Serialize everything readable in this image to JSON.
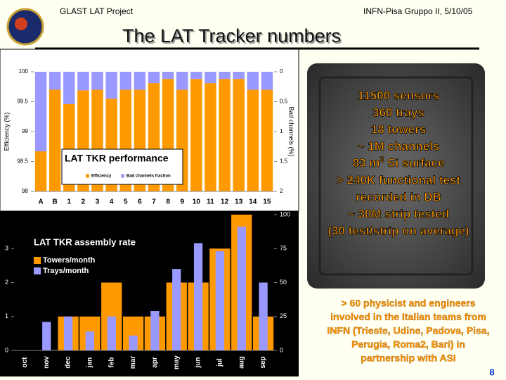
{
  "header": {
    "left": "GLAST LAT Project",
    "right": "INFN-Pisa Gruppo II, 5/10/05"
  },
  "title": "The LAT Tracker numbers",
  "chart_data": [
    {
      "type": "bar",
      "title": "LAT TKR performance",
      "categories": [
        "A",
        "B",
        "1",
        "2",
        "3",
        "4",
        "5",
        "6",
        "7",
        "8",
        "9",
        "10",
        "11",
        "12",
        "13",
        "14",
        "15"
      ],
      "series": [
        {
          "name": "Efficiency",
          "color": "#ff9900",
          "values": [
            98.67,
            99.7,
            99.46,
            99.69,
            99.7,
            99.55,
            99.7,
            99.7,
            99.81,
            99.88,
            99.7,
            99.88,
            99.81,
            99.88,
            99.88,
            99.7,
            99.7
          ]
        },
        {
          "name": "Bad channels fraction",
          "color": "#9999ff",
          "axis": "y2",
          "values": [
            1.33,
            0.3,
            0.54,
            0.31,
            0.3,
            0.45,
            0.3,
            0.3,
            0.19,
            0.12,
            0.3,
            0.12,
            0.19,
            0.12,
            0.12,
            0.3,
            0.3
          ]
        }
      ],
      "ylabel": "Efficiency (%)",
      "y2label": "Bad channels (%)",
      "ylim": [
        98,
        100
      ],
      "yticks": [
        98,
        98.5,
        99,
        99.5,
        100
      ],
      "y2lim": [
        2,
        0
      ],
      "y2ticks": [
        0,
        0.5,
        1,
        1.5,
        2
      ]
    },
    {
      "type": "bar",
      "title": "LAT TKR assembly rate",
      "categories": [
        "oct",
        "nov",
        "dec",
        "jan",
        "feb",
        "mar",
        "apr",
        "may",
        "jun",
        "jul",
        "aug",
        "sep"
      ],
      "series": [
        {
          "name": "Towers/month",
          "color": "#ff9900",
          "values": [
            0,
            0,
            1,
            1,
            2,
            1,
            1,
            2,
            2,
            3,
            4,
            1
          ]
        },
        {
          "name": "Trays/month",
          "color": "#9999ff",
          "axis": "y2",
          "values": [
            0,
            21,
            25,
            14,
            25,
            11,
            29,
            60,
            79,
            73,
            91,
            50
          ]
        }
      ],
      "ylim": [
        0,
        4
      ],
      "yticks": [
        0,
        1,
        2,
        3
      ],
      "y2lim": [
        0,
        100
      ],
      "y2ticks": [
        0,
        25,
        50,
        75,
        100
      ]
    }
  ],
  "photo_text": {
    "lines": [
      "11500 sensors",
      "360 trays",
      "18 towers",
      "~ 1M channels",
      {
        "before": "83 m",
        "sup": "2",
        "after": " Si surface"
      },
      "> 240K functional test",
      "recorded in DB",
      "~ 30M strip tested",
      "(30 test/strip on average)"
    ]
  },
  "footnote": {
    "lines": [
      "> 60 physicist and engineers",
      "involved in the Italian teams from",
      "INFN (Trieste, Udine, Padova, Pisa,",
      "Perugia, Roma2, Bari) in",
      "partnership with ASI"
    ]
  },
  "page_number": "8"
}
